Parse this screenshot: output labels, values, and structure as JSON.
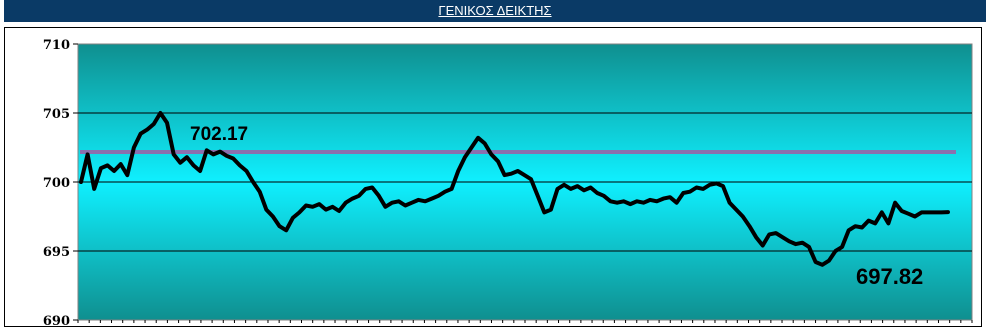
{
  "header": {
    "title": "ΓΕΝΙΚΟΣ  ΔΕΙΚΤΗΣ"
  },
  "colors": {
    "header_bg": "#0a3a66",
    "plot_gradient_top": "#0f8f8f",
    "plot_gradient_mid": "#0ff0ff",
    "plot_gradient_bottom": "#0f8f8f",
    "series_line": "#000000",
    "reference_line": "#8b6fae",
    "gridline": "#000000"
  },
  "chart_data": {
    "type": "line",
    "title": "",
    "xlabel": "",
    "ylabel": "",
    "ylim": [
      690,
      710
    ],
    "yticks": [
      690,
      695,
      700,
      705,
      710
    ],
    "grid": "horizontal",
    "legend": "none",
    "series": [
      {
        "values": [
          700.0,
          702.0,
          699.5,
          701.0,
          701.2,
          700.8,
          701.3,
          700.5,
          702.5,
          703.5,
          703.8,
          704.2,
          705.0,
          704.3,
          702.0,
          701.4,
          701.8,
          701.2,
          700.8,
          702.3,
          702.0,
          702.2,
          701.9,
          701.7,
          701.2,
          700.8,
          700.0,
          699.3,
          698.0,
          697.5,
          696.8,
          696.5,
          697.4,
          697.8,
          698.3,
          698.2,
          698.4,
          698.0,
          698.2,
          697.9,
          698.5,
          698.8,
          699.0,
          699.5,
          699.6,
          699.0,
          698.2,
          698.5,
          698.6,
          698.3,
          698.5,
          698.7,
          698.6,
          698.8,
          699.0,
          699.3,
          699.5,
          700.8,
          701.8,
          702.5,
          703.2,
          702.8,
          702.0,
          701.5,
          700.5,
          700.6,
          700.8,
          700.5,
          700.2,
          699.0,
          697.8,
          698.0,
          699.5,
          699.8,
          699.5,
          699.7,
          699.4,
          699.6,
          699.2,
          699.0,
          698.6,
          698.5,
          698.6,
          698.4,
          698.6,
          698.5,
          698.7,
          698.6,
          698.8,
          698.9,
          698.5,
          699.2,
          699.3,
          699.6,
          699.5,
          699.8,
          699.9,
          699.7,
          698.5,
          698.0,
          697.5,
          696.8,
          696.0,
          695.4,
          696.2,
          696.3,
          696.0,
          695.7,
          695.5,
          695.6,
          695.3,
          694.2,
          694.0,
          694.3,
          695.0,
          695.3,
          696.5,
          696.8,
          696.7,
          697.2,
          697.0,
          697.8,
          697.0,
          698.5,
          697.9,
          697.7,
          697.5,
          697.8,
          697.8,
          697.8,
          697.8,
          697.82
        ]
      }
    ],
    "reference_line": {
      "value": 702.17,
      "label": "702.17"
    },
    "last_value_label": "697.82"
  }
}
